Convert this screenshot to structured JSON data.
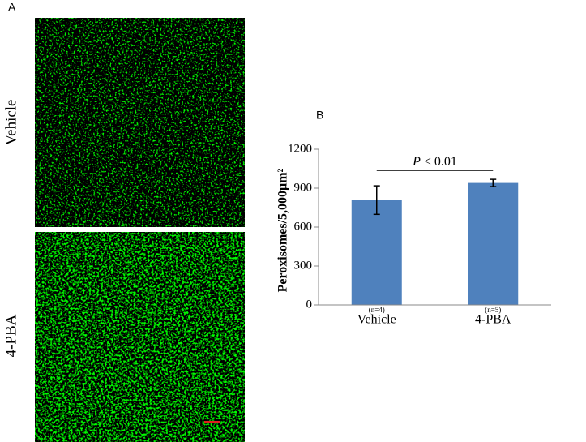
{
  "panel_a": {
    "label": "A",
    "rows": [
      "Vehicle",
      "4-PBA"
    ]
  },
  "chart_data": {
    "type": "bar",
    "panel_label": "B",
    "categories": [
      "Vehicle",
      "4-PBA"
    ],
    "sample_sizes": [
      "(n=4)",
      "(n=5)"
    ],
    "values": [
      808,
      940
    ],
    "errors": [
      110,
      28
    ],
    "color": "#4f81bd",
    "ylabel": "Peroxisomes/5,000µm²",
    "annotation": {
      "italic": "P",
      "text": " < 0.01"
    },
    "ylim": [
      0,
      1200
    ],
    "yticks": [
      0,
      300,
      600,
      900,
      1200
    ]
  }
}
